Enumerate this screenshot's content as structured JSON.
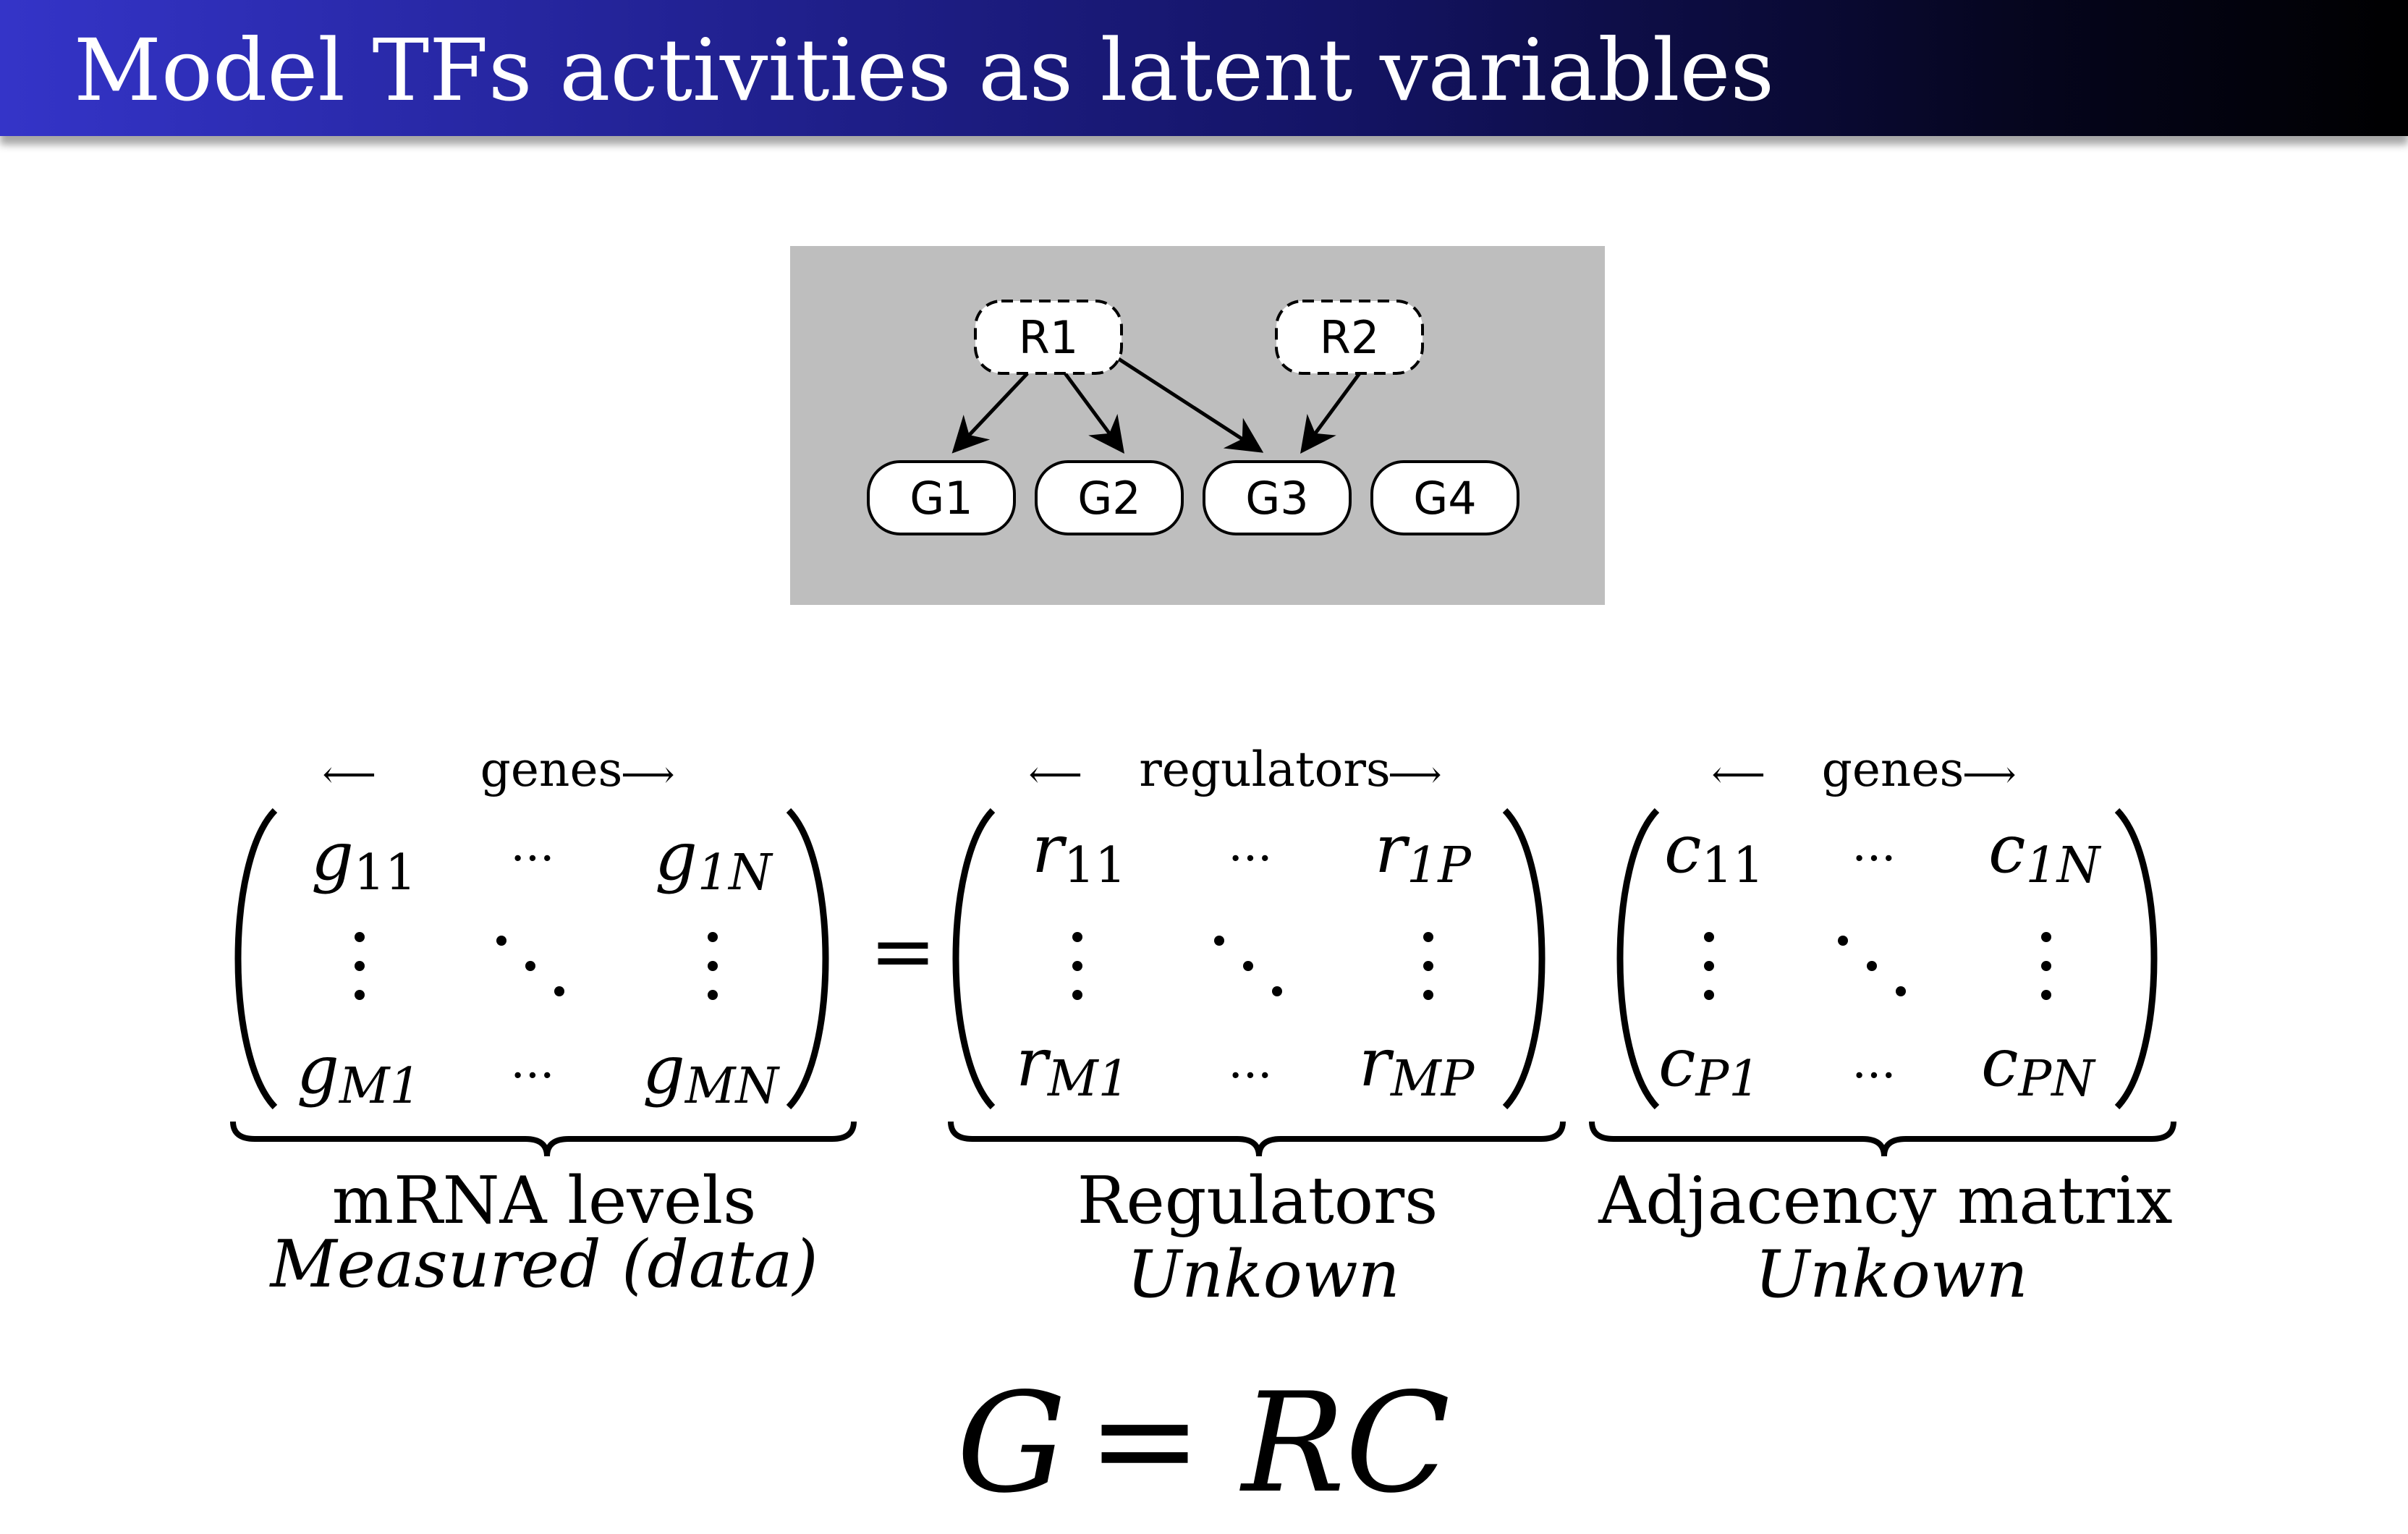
{
  "title": "Model TFs activities as latent variables",
  "diagram": {
    "regulators": [
      "R1",
      "R2"
    ],
    "genes": [
      "G1",
      "G2",
      "G3",
      "G4"
    ],
    "edges": [
      [
        "R1",
        "G1"
      ],
      [
        "R1",
        "G2"
      ],
      [
        "R1",
        "G3"
      ],
      [
        "R2",
        "G3"
      ]
    ]
  },
  "matrices": {
    "g": {
      "header": "genes",
      "cells": {
        "tl_base": "g",
        "tl_sub": "11",
        "tr_base": "g",
        "tr_sub": "1N",
        "bl_base": "g",
        "bl_sub": "M1",
        "br_base": "g",
        "br_sub": "MN"
      },
      "label": "mRNA levels",
      "sublabel": "Measured (data)"
    },
    "r": {
      "header": "regulators",
      "cells": {
        "tl_base": "r",
        "tl_sub": "11",
        "tr_base": "r",
        "tr_sub": "1P",
        "bl_base": "r",
        "bl_sub": "M1",
        "br_base": "r",
        "br_sub": "MP"
      },
      "label": "Regulators",
      "sublabel": "Unkown"
    },
    "c": {
      "header": "genes",
      "cells": {
        "tl_base": "c",
        "tl_sub": "11",
        "tr_base": "c",
        "tr_sub": "1N",
        "bl_base": "c",
        "bl_sub": "P1",
        "br_base": "c",
        "br_sub": "PN"
      },
      "label": "Adjacency matrix",
      "sublabel": "Unkown"
    }
  },
  "symbols": {
    "equals": "=",
    "hdots": "···",
    "arrow_left": "⟵",
    "arrow_right": "⟶"
  },
  "equation": {
    "lhs": "G",
    "op": "=",
    "rhs": "RC"
  }
}
